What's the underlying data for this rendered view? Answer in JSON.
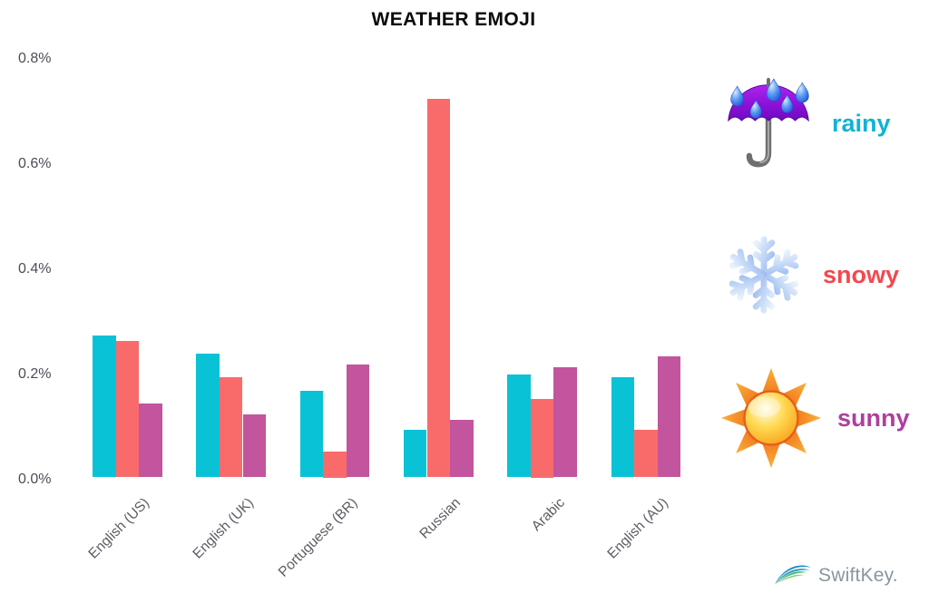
{
  "title": "WEATHER EMOJI",
  "chart_data": {
    "type": "bar",
    "title": "WEATHER EMOJI",
    "categories": [
      "English (US)",
      "English (UK)",
      "Portuguese (BR)",
      "Russian",
      "Arabic",
      "English (AU)"
    ],
    "series": [
      {
        "name": "rainy",
        "color": "#0ac2d6",
        "values": [
          0.27,
          0.235,
          0.165,
          0.09,
          0.195,
          0.19
        ]
      },
      {
        "name": "snowy",
        "color": "#f96b6b",
        "values": [
          0.26,
          0.19,
          0.05,
          0.72,
          0.15,
          0.09
        ]
      },
      {
        "name": "sunny",
        "color": "#c2559d",
        "values": [
          0.14,
          0.12,
          0.215,
          0.11,
          0.21,
          0.23
        ]
      }
    ],
    "ylabel": "",
    "xlabel": "",
    "ylim": [
      0,
      0.8
    ],
    "ytick_labels": [
      "0.8%",
      "0.6%",
      "0.4%",
      "0.2%",
      "0.0%"
    ],
    "ytick_values": [
      0.8,
      0.6,
      0.4,
      0.2,
      0.0
    ],
    "grid": false,
    "axis_lines": false,
    "legend_position": "right"
  },
  "legend": {
    "items": [
      {
        "label": "rainy",
        "icon": "umbrella-rain-emoji",
        "label_color": "#0fb4d6"
      },
      {
        "label": "snowy",
        "icon": "snowflake-emoji",
        "label_color": "#f4484f"
      },
      {
        "label": "sunny",
        "icon": "sun-emoji",
        "label_color": "#b03f9c"
      }
    ]
  },
  "branding": {
    "logo_text": "SwiftKey."
  }
}
